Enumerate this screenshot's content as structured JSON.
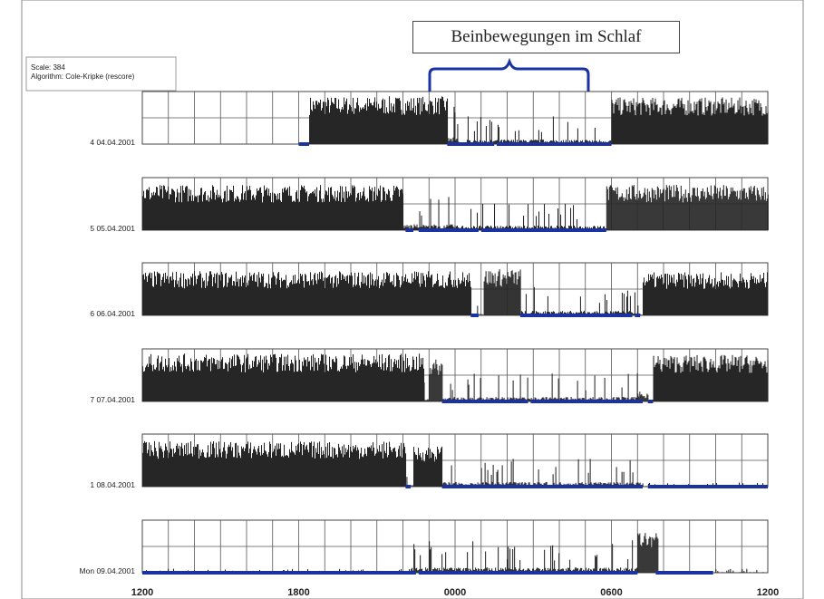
{
  "info": {
    "scale": "Scale: 384",
    "algorithm": "Algorithm: Cole-Kripke (rescore)"
  },
  "annotation": {
    "text": "Beinbewegungen im Schlaf"
  },
  "colors": {
    "activity": "#262626",
    "sleep": "#1a33a0",
    "brace": "#1a33a0",
    "grid": "#444444"
  },
  "chart_data": {
    "type": "bar",
    "title": "",
    "xlabel": "",
    "ylabel": "",
    "x_ticks": [
      "1200",
      "1800",
      "0000",
      "0600",
      "1200"
    ],
    "x_range_hours": [
      12,
      36
    ],
    "grid": true,
    "rows": [
      {
        "label": "4 04.04.2001",
        "activity": [
          [
            18.4,
            23.7,
            0.82
          ],
          [
            23.7,
            24.15,
            0.2
          ],
          [
            24.15,
            24.45,
            0.05
          ],
          [
            24.45,
            30.0,
            0.14
          ],
          [
            30.0,
            36.0,
            0.8
          ]
        ],
        "sleep": [
          [
            18.0,
            18.4
          ],
          [
            23.7,
            25.5
          ],
          [
            25.6,
            30.0
          ]
        ]
      },
      {
        "label": "5 05.04.2001",
        "activity": [
          [
            12.0,
            22.0,
            0.78
          ],
          [
            22.0,
            24.0,
            0.18
          ],
          [
            24.0,
            29.8,
            0.14
          ],
          [
            29.8,
            36.0,
            0.78
          ]
        ],
        "sleep": [
          [
            22.1,
            22.4
          ],
          [
            22.6,
            24.9
          ],
          [
            25.0,
            29.8
          ]
        ]
      },
      {
        "label": "6 06.04.2001",
        "activity": [
          [
            12.0,
            24.6,
            0.76
          ],
          [
            24.6,
            25.1,
            0.05
          ],
          [
            25.1,
            26.5,
            0.8
          ],
          [
            26.5,
            31.0,
            0.14
          ],
          [
            31.0,
            31.2,
            0.05
          ],
          [
            31.2,
            36.0,
            0.74
          ]
        ],
        "sleep": [
          [
            24.6,
            24.9
          ],
          [
            26.5,
            30.8
          ],
          [
            30.9,
            31.1
          ]
        ]
      },
      {
        "label": "7 07.04.2001",
        "activity": [
          [
            12.0,
            22.8,
            0.82
          ],
          [
            22.8,
            23.0,
            0.1
          ],
          [
            23.0,
            23.5,
            0.72
          ],
          [
            23.5,
            31.0,
            0.14
          ],
          [
            31.0,
            31.4,
            0.3
          ],
          [
            31.4,
            31.6,
            0.05
          ],
          [
            31.6,
            36.0,
            0.8
          ]
        ],
        "sleep": [
          [
            23.5,
            26.8
          ],
          [
            26.9,
            31.2
          ],
          [
            31.4,
            31.6
          ]
        ]
      },
      {
        "label": "1 08.04.2001",
        "activity": [
          [
            12.0,
            22.1,
            0.78
          ],
          [
            22.1,
            22.4,
            0.05
          ],
          [
            22.4,
            23.5,
            0.7
          ],
          [
            23.5,
            31.2,
            0.14
          ],
          [
            31.2,
            36.0,
            0.02
          ]
        ],
        "sleep": [
          [
            22.1,
            22.3
          ],
          [
            23.5,
            31.2
          ],
          [
            31.4,
            36.0
          ]
        ]
      },
      {
        "label": "Mon 09.04.2001",
        "activity": [
          [
            12.0,
            22.3,
            0.02
          ],
          [
            22.3,
            31.0,
            0.16
          ],
          [
            31.0,
            31.8,
            0.7
          ],
          [
            31.8,
            36.0,
            0.02
          ]
        ],
        "sleep": [
          [
            12.0,
            22.5
          ],
          [
            22.6,
            31.0
          ],
          [
            31.7,
            33.9
          ]
        ]
      }
    ]
  }
}
